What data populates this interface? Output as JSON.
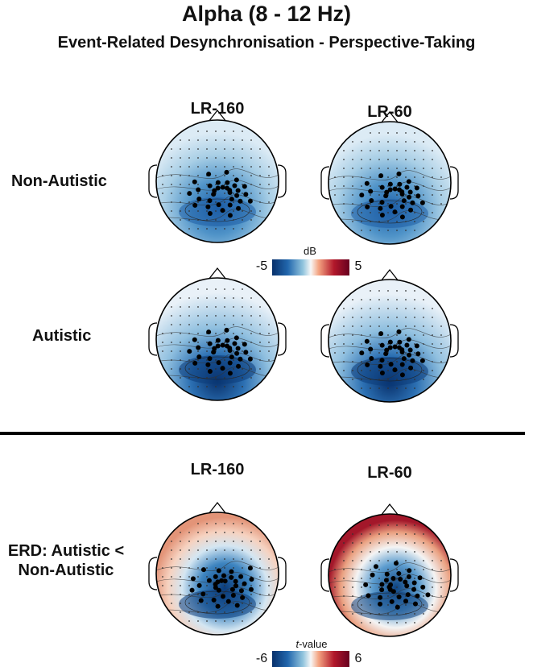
{
  "title": "Alpha (8 - 12 Hz)",
  "subtitle": "Event-Related Desynchronisation - Perspective-Taking",
  "columns": [
    "LR-160",
    "LR-60"
  ],
  "rows": [
    "Non-Autistic",
    "Autistic"
  ],
  "colorbar_top": {
    "label": "dB",
    "min": "-5",
    "max": "5"
  },
  "stats": {
    "columns": [
      "LR-160",
      "LR-60"
    ],
    "row_label_line1": "ERD: Autistic <",
    "row_label_line2": "Non-Autistic",
    "colorbar": {
      "label_italic": "t",
      "label_rest": "-value",
      "min": "-6",
      "max": "6"
    }
  },
  "colors": {
    "negative": "#08306b",
    "neutral": "#f7f7f7",
    "positive": "#67001f"
  }
}
